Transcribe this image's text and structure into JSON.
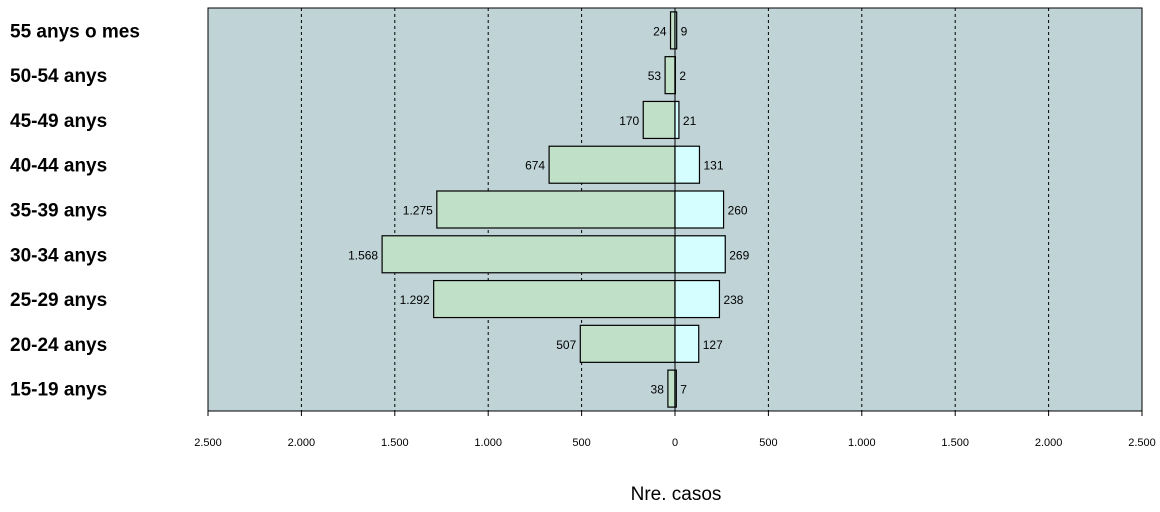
{
  "chart_data": {
    "type": "bar",
    "orientation": "horizontal",
    "layout": "population-pyramid",
    "xlabel": "Nre. casos",
    "xlim": [
      -2500,
      2500
    ],
    "x_ticks": [
      -2500,
      -2000,
      -1500,
      -1000,
      -500,
      0,
      500,
      1000,
      1500,
      2000,
      2500
    ],
    "x_tick_labels": [
      "2.500",
      "2.000",
      "1.500",
      "1.000",
      "500",
      "0",
      "500",
      "1.000",
      "1.500",
      "2.000",
      "2.500"
    ],
    "categories": [
      "55 anys o mes",
      "50-54 anys",
      "45-49 anys",
      "40-44 anys",
      "35-39 anys",
      "30-34 anys",
      "25-29 anys",
      "20-24 anys",
      "15-19 anys"
    ],
    "series": [
      {
        "side": "left",
        "values": [
          24,
          53,
          170,
          674,
          1275,
          1568,
          1292,
          507,
          38
        ],
        "labels": [
          "24",
          "53",
          "170",
          "674",
          "1.275",
          "1.568",
          "1.292",
          "507",
          "38"
        ],
        "color": "#c0e0c8"
      },
      {
        "side": "right",
        "values": [
          9,
          2,
          21,
          131,
          260,
          269,
          238,
          127,
          7
        ],
        "labels": [
          "9",
          "2",
          "21",
          "131",
          "260",
          "269",
          "238",
          "127",
          "7"
        ],
        "color": "#d4feff"
      }
    ],
    "plot_background": "#c0d4d8",
    "grid": "vertical dashed",
    "legend": "none"
  }
}
